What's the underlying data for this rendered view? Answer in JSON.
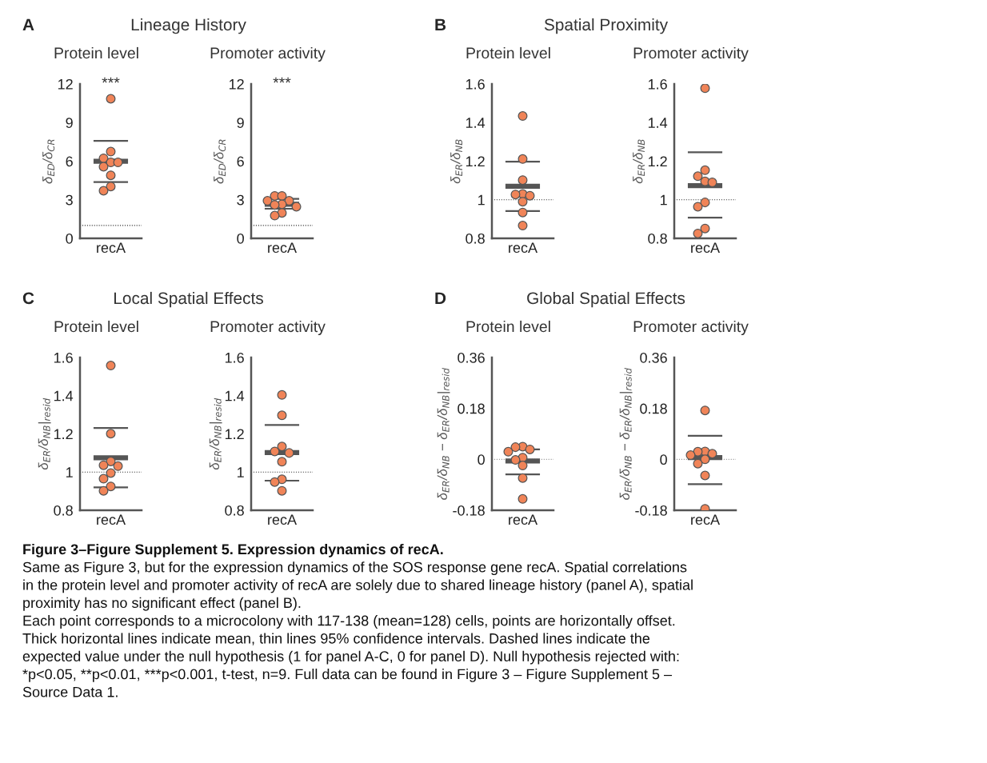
{
  "chart_data": [
    {
      "type": "scatter",
      "title": "Lineage History",
      "subtitle": "Protein level",
      "ylabel": "δ$_{ED}$/δ$_{CR}$",
      "categories": [
        "recA"
      ],
      "ylim": [
        0,
        12
      ],
      "yticks": [
        0,
        3,
        6,
        9,
        12
      ],
      "annotations": [
        "A",
        "***"
      ],
      "ref_lines": [
        {
          "axis": "y",
          "value": 1,
          "line_style": "dotted",
          "color": "#333333"
        },
        {
          "axis": "y",
          "value": 6.0,
          "line_style": "solid",
          "color": "#555555"
        },
        {
          "axis": "y",
          "value": 4.38,
          "line_style": "solid",
          "color": "#555555"
        },
        {
          "axis": "y",
          "value": 7.58,
          "line_style": "solid",
          "color": "#555555"
        }
      ],
      "series": [
        {
          "color": "#f08458",
          "marker": "circle",
          "x": [
            "recA",
            "recA",
            "recA",
            "recA",
            "recA",
            "recA",
            "recA",
            "recA",
            "recA"
          ],
          "values": [
            10.85,
            6.74,
            6.22,
            5.9,
            5.9,
            5.57,
            4.9,
            4.03,
            3.7
          ]
        }
      ]
    },
    {
      "type": "scatter",
      "subtitle": "Promoter activity",
      "ylabel": "δ$_{ED}$/δ$_{CR}$",
      "categories": [
        "recA"
      ],
      "ylim": [
        0,
        12
      ],
      "yticks": [
        0,
        3,
        6,
        9,
        12
      ],
      "annotations": [
        "***"
      ],
      "ref_lines": [
        {
          "axis": "y",
          "value": 1,
          "line_style": "dotted",
          "color": "#333333"
        },
        {
          "axis": "y",
          "value": 2.65,
          "line_style": "solid",
          "color": "#555555"
        },
        {
          "axis": "y",
          "value": 2.3,
          "line_style": "solid",
          "color": "#555555"
        },
        {
          "axis": "y",
          "value": 3.07,
          "line_style": "solid",
          "color": "#555555"
        }
      ],
      "series": [
        {
          "color": "#f08458",
          "marker": "circle",
          "x": [
            "recA",
            "recA",
            "recA",
            "recA",
            "recA",
            "recA",
            "recA",
            "recA",
            "recA"
          ],
          "values": [
            3.3,
            3.3,
            2.92,
            2.92,
            2.65,
            2.6,
            2.46,
            1.98,
            1.77
          ]
        }
      ]
    },
    {
      "type": "scatter",
      "title": "Spatial Proximity",
      "subtitle": "Protein level",
      "ylabel": "δ$_{ER}$/δ$_{NB}$",
      "categories": [
        "recA"
      ],
      "ylim": [
        0.8,
        1.6
      ],
      "yticks": [
        0.8,
        1,
        1.2,
        1.4,
        1.6
      ],
      "annotations": [
        "B"
      ],
      "ref_lines": [
        {
          "axis": "y",
          "value": 1,
          "line_style": "dotted",
          "color": "#333333"
        },
        {
          "axis": "y",
          "value": 1.07,
          "line_style": "solid",
          "color": "#555555"
        },
        {
          "axis": "y",
          "value": 0.941,
          "line_style": "solid",
          "color": "#555555"
        },
        {
          "axis": "y",
          "value": 1.197,
          "line_style": "solid",
          "color": "#555555"
        }
      ],
      "series": [
        {
          "color": "#f08458",
          "marker": "circle",
          "x": [
            "recA",
            "recA",
            "recA",
            "recA",
            "recA",
            "recA",
            "recA",
            "recA",
            "recA"
          ],
          "values": [
            1.434,
            1.211,
            1.102,
            1.03,
            1.027,
            1.021,
            0.99,
            0.934,
            0.866
          ]
        }
      ]
    },
    {
      "type": "scatter",
      "subtitle": "Promoter activity",
      "ylabel": "δ$_{ER}$/δ$_{NB}$",
      "categories": [
        "recA"
      ],
      "ylim": [
        0.8,
        1.6
      ],
      "yticks": [
        0.8,
        1,
        1.2,
        1.4,
        1.6
      ],
      "ref_lines": [
        {
          "axis": "y",
          "value": 1,
          "line_style": "dotted",
          "color": "#333333"
        },
        {
          "axis": "y",
          "value": 1.073,
          "line_style": "solid",
          "color": "#555555"
        },
        {
          "axis": "y",
          "value": 0.907,
          "line_style": "solid",
          "color": "#555555"
        },
        {
          "axis": "y",
          "value": 1.246,
          "line_style": "solid",
          "color": "#555555"
        }
      ],
      "series": [
        {
          "color": "#f08458",
          "marker": "circle",
          "x": [
            "recA",
            "recA",
            "recA",
            "recA",
            "recA",
            "recA",
            "recA",
            "recA",
            "recA"
          ],
          "values": [
            1.578,
            1.153,
            1.122,
            1.095,
            1.09,
            0.986,
            0.964,
            0.851,
            0.825
          ]
        }
      ]
    },
    {
      "type": "scatter",
      "title": "Local Spatial Effects",
      "subtitle": "Protein level",
      "ylabel": "δ$_{ER}$/δ$_{NB}$|$_{resid}$",
      "categories": [
        "recA"
      ],
      "ylim": [
        0.8,
        1.6
      ],
      "yticks": [
        0.8,
        1,
        1.2,
        1.4,
        1.6
      ],
      "annotations": [
        "C"
      ],
      "ref_lines": [
        {
          "axis": "y",
          "value": 1,
          "line_style": "dotted",
          "color": "#333333"
        },
        {
          "axis": "y",
          "value": 1.075,
          "line_style": "solid",
          "color": "#555555"
        },
        {
          "axis": "y",
          "value": 0.92,
          "line_style": "solid",
          "color": "#555555"
        },
        {
          "axis": "y",
          "value": 1.231,
          "line_style": "solid",
          "color": "#555555"
        }
      ],
      "series": [
        {
          "color": "#f08458",
          "marker": "circle",
          "x": [
            "recA",
            "recA",
            "recA",
            "recA",
            "recA",
            "recA",
            "recA",
            "recA",
            "recA"
          ],
          "values": [
            1.558,
            1.201,
            1.056,
            1.036,
            1.031,
            0.995,
            0.965,
            0.925,
            0.902
          ]
        }
      ]
    },
    {
      "type": "scatter",
      "subtitle": "Promoter activity",
      "ylabel": "δ$_{ER}$/δ$_{NB}$|$_{resid}$",
      "categories": [
        "recA"
      ],
      "ylim": [
        0.8,
        1.6
      ],
      "yticks": [
        0.8,
        1,
        1.2,
        1.4,
        1.6
      ],
      "ref_lines": [
        {
          "axis": "y",
          "value": 1,
          "line_style": "dotted",
          "color": "#333333"
        },
        {
          "axis": "y",
          "value": 1.102,
          "line_style": "solid",
          "color": "#555555"
        },
        {
          "axis": "y",
          "value": 0.955,
          "line_style": "solid",
          "color": "#555555"
        },
        {
          "axis": "y",
          "value": 1.247,
          "line_style": "solid",
          "color": "#555555"
        }
      ],
      "series": [
        {
          "color": "#f08458",
          "marker": "circle",
          "x": [
            "recA",
            "recA",
            "recA",
            "recA",
            "recA",
            "recA",
            "recA",
            "recA",
            "recA"
          ],
          "values": [
            1.404,
            1.297,
            1.134,
            1.108,
            1.1,
            1.054,
            0.962,
            0.948,
            0.902
          ]
        }
      ]
    },
    {
      "type": "scatter",
      "title": "Global Spatial Effects",
      "subtitle": "Protein level",
      "ylabel": "δ$_{ER}$/δ$_{NB}$ − δ$_{ER}$/δ$_{NB}$|$_{resid}$",
      "categories": [
        "recA"
      ],
      "ylim": [
        -0.18,
        0.36
      ],
      "yticks": [
        -0.18,
        0,
        0.18,
        0.36
      ],
      "annotations": [
        "D"
      ],
      "ref_lines": [
        {
          "axis": "y",
          "value": 0,
          "line_style": "dotted",
          "color": "#999999"
        },
        {
          "axis": "y",
          "value": -0.006,
          "line_style": "solid",
          "color": "#555555"
        },
        {
          "axis": "y",
          "value": -0.053,
          "line_style": "solid",
          "color": "#555555"
        },
        {
          "axis": "y",
          "value": 0.035,
          "line_style": "solid",
          "color": "#555555"
        }
      ],
      "series": [
        {
          "color": "#f08458",
          "marker": "circle",
          "x": [
            "recA",
            "recA",
            "recA",
            "recA",
            "recA",
            "recA",
            "recA",
            "recA",
            "recA"
          ],
          "values": [
            0.045,
            0.043,
            0.035,
            0.027,
            0.006,
            -0.002,
            -0.022,
            -0.066,
            -0.14
          ]
        }
      ]
    },
    {
      "type": "scatter",
      "subtitle": "Promoter activity",
      "ylabel": "δ$_{ER}$/δ$_{NB}$ − δ$_{ER}$/δ$_{NB}$|$_{resid}$",
      "categories": [
        "recA"
      ],
      "ylim": [
        -0.18,
        0.36
      ],
      "yticks": [
        -0.18,
        0,
        0.18,
        0.36
      ],
      "ref_lines": [
        {
          "axis": "y",
          "value": 0,
          "line_style": "dotted",
          "color": "#999999"
        },
        {
          "axis": "y",
          "value": 0.006,
          "line_style": "solid",
          "color": "#555555"
        },
        {
          "axis": "y",
          "value": -0.088,
          "line_style": "solid",
          "color": "#555555"
        },
        {
          "axis": "y",
          "value": 0.083,
          "line_style": "solid",
          "color": "#555555"
        }
      ],
      "series": [
        {
          "color": "#f08458",
          "marker": "circle",
          "x": [
            "recA",
            "recA",
            "recA",
            "recA",
            "recA",
            "recA",
            "recA",
            "recA",
            "recA"
          ],
          "values": [
            0.173,
            0.028,
            0.027,
            0.02,
            0.015,
            0.0,
            -0.015,
            -0.057,
            -0.175
          ]
        }
      ]
    },
    {
      "type": "other",
      "annotations": [
        "Figure 3–Figure Supplement 5. Expression dynamics of recA.",
        "Same as Figure 3, but for the expression dynamics of the SOS response gene recA. Spatial correlations",
        "in the protein level and promoter activity of recA are solely due to shared lineage history (panel A), spatial",
        "proximity has no significant effect (panel B).",
        "Each point corresponds to a microcolony with 117-138 (mean=128) cells, points are horizontally offset.",
        "Thick horizontal lines indicate mean, thin lines 95% confidence intervals. Dashed lines indicate the",
        "expected value under the null hypothesis (1 for panel A-C, 0 for panel D). Null hypothesis rejected with:",
        "*p<0.05, **p<0.01, ***p<0.001, t-test, n=9. Full data can be found in Figure 3 – Figure Supplement 5 –",
        "Source Data 1."
      ]
    }
  ]
}
